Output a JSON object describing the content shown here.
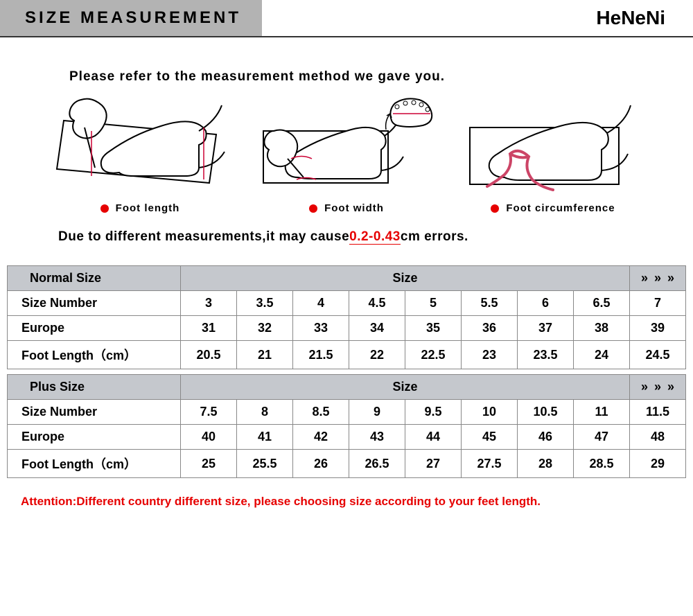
{
  "header": {
    "title": "SIZE MEASUREMENT",
    "brand": "HeNeNi"
  },
  "instruction": "Please refer to the measurement method we gave you.",
  "diagrams": {
    "items": [
      {
        "label": "Foot length"
      },
      {
        "label": "Foot width"
      },
      {
        "label": "Foot circumference"
      }
    ],
    "dot_color": "#e60000",
    "stroke_color": "#000000",
    "guide_color": "#cc0033"
  },
  "error_note": {
    "prefix": "Due to different measurements,it may cause",
    "range": "0.2-0.43",
    "suffix": "cm errors."
  },
  "table": {
    "header_bg": "#c5c8cd",
    "border_color": "#888888",
    "sections": [
      {
        "title": "Normal Size",
        "size_header": "Size",
        "arrows": "»  »  »",
        "rows": [
          {
            "label": "Size Number",
            "values": [
              "3",
              "3.5",
              "4",
              "4.5",
              "5",
              "5.5",
              "6",
              "6.5",
              "7"
            ]
          },
          {
            "label": "Europe",
            "values": [
              "31",
              "32",
              "33",
              "34",
              "35",
              "36",
              "37",
              "38",
              "39"
            ]
          },
          {
            "label": "Foot Length（cm）",
            "values": [
              "20.5",
              "21",
              "21.5",
              "22",
              "22.5",
              "23",
              "23.5",
              "24",
              "24.5"
            ]
          }
        ]
      },
      {
        "title": "Plus   Size",
        "size_header": "Size",
        "arrows": "»  »  »",
        "rows": [
          {
            "label": "Size Number",
            "values": [
              "7.5",
              "8",
              "8.5",
              "9",
              "9.5",
              "10",
              "10.5",
              "11",
              "11.5"
            ]
          },
          {
            "label": "Europe",
            "values": [
              "40",
              "41",
              "42",
              "43",
              "44",
              "45",
              "46",
              "47",
              "48"
            ]
          },
          {
            "label": "Foot Length（cm）",
            "values": [
              "25",
              "25.5",
              "26",
              "26.5",
              "27",
              "27.5",
              "28",
              "28.5",
              "29"
            ]
          }
        ]
      }
    ]
  },
  "attention": "Attention:Different country different size, please choosing size according to your feet length."
}
